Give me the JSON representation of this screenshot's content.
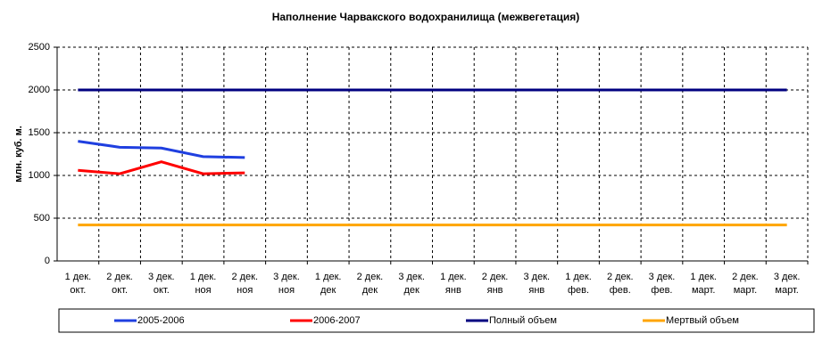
{
  "chart_data": {
    "type": "line",
    "title": "Наполнение Чарвакского водохранилища  (межвегетация)",
    "y_label": "млн. куб. м.",
    "categories": [
      [
        "1 дек.",
        "окт."
      ],
      [
        "2 дек.",
        "окт."
      ],
      [
        "3 дек.",
        "окт."
      ],
      [
        "1 дек.",
        "ноя"
      ],
      [
        "2 дек.",
        "ноя"
      ],
      [
        "3 дек.",
        "ноя"
      ],
      [
        "1 дек.",
        "дек"
      ],
      [
        "2 дек.",
        "дек"
      ],
      [
        "3 дек.",
        "дек"
      ],
      [
        "1 дек.",
        "янв"
      ],
      [
        "2 дек.",
        "янв"
      ],
      [
        "3 дек.",
        "янв"
      ],
      [
        "1 дек.",
        "фев."
      ],
      [
        "2 дек.",
        "фев."
      ],
      [
        "3 дек.",
        "фев."
      ],
      [
        "1 дек.",
        "март."
      ],
      [
        "2 дек.",
        "март."
      ],
      [
        "3 дек.",
        "март."
      ]
    ],
    "series": [
      {
        "name": "2005-2006",
        "color": "#1f3fe0",
        "values": [
          1400,
          1330,
          1320,
          1220,
          1210,
          null,
          null,
          null,
          null,
          null,
          null,
          null,
          null,
          null,
          null,
          null,
          null,
          null
        ]
      },
      {
        "name": "2006-2007",
        "color": "#ff0000",
        "values": [
          1060,
          1020,
          1160,
          1020,
          1030,
          null,
          null,
          null,
          null,
          null,
          null,
          null,
          null,
          null,
          null,
          null,
          null,
          null
        ]
      },
      {
        "name": "Полный объем",
        "color": "#000080",
        "values": [
          2000,
          2000,
          2000,
          2000,
          2000,
          2000,
          2000,
          2000,
          2000,
          2000,
          2000,
          2000,
          2000,
          2000,
          2000,
          2000,
          2000,
          2000
        ]
      },
      {
        "name": "Мертвый объем",
        "color": "#ffa500",
        "values": [
          420,
          420,
          420,
          420,
          420,
          420,
          420,
          420,
          420,
          420,
          420,
          420,
          420,
          420,
          420,
          420,
          420,
          420
        ]
      }
    ],
    "ylim": [
      0,
      2500
    ],
    "yticks": [
      0,
      500,
      1000,
      1500,
      2000,
      2500
    ],
    "grid": true,
    "legend": "bottom"
  }
}
